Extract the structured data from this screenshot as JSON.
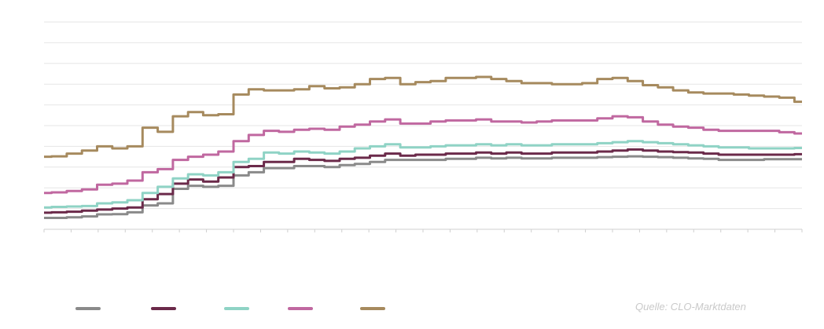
{
  "chart_data": {
    "type": "line",
    "title": "",
    "xlabel": "",
    "ylabel": "",
    "ylim": [
      0,
      10
    ],
    "grid": true,
    "y_gridlines": [
      0,
      1,
      2,
      3,
      4,
      5,
      6,
      7,
      8,
      9,
      10
    ],
    "x_ticks": 28,
    "legend_position": "bottom-left",
    "x": [
      0,
      2,
      4,
      6,
      8,
      10,
      12,
      14,
      16,
      18,
      20,
      22,
      24,
      26,
      28,
      30,
      32,
      34,
      36,
      38,
      40,
      42,
      44,
      46,
      48,
      50,
      52,
      54,
      56,
      58,
      60,
      62,
      64,
      66,
      68,
      70,
      72,
      74,
      76,
      78,
      80,
      82,
      84,
      86,
      88,
      90,
      92,
      94,
      96,
      98,
      100
    ],
    "series": [
      {
        "color": "#8a8a8a",
        "values": [
          0.55,
          0.55,
          0.58,
          0.62,
          0.72,
          0.73,
          0.82,
          1.15,
          1.25,
          1.95,
          2.1,
          2.05,
          2.1,
          2.6,
          2.75,
          2.95,
          2.95,
          3.05,
          3.05,
          3.0,
          3.1,
          3.15,
          3.25,
          3.35,
          3.35,
          3.35,
          3.35,
          3.4,
          3.4,
          3.45,
          3.42,
          3.45,
          3.42,
          3.42,
          3.45,
          3.45,
          3.45,
          3.48,
          3.5,
          3.52,
          3.5,
          3.48,
          3.45,
          3.42,
          3.4,
          3.35,
          3.35,
          3.35,
          3.38,
          3.38,
          3.38
        ]
      },
      {
        "color": "#6b2a4a",
        "values": [
          0.8,
          0.82,
          0.85,
          0.9,
          0.95,
          1.0,
          1.05,
          1.45,
          1.7,
          2.2,
          2.4,
          2.3,
          2.5,
          3.0,
          3.05,
          3.25,
          3.25,
          3.4,
          3.35,
          3.3,
          3.4,
          3.45,
          3.55,
          3.65,
          3.55,
          3.6,
          3.6,
          3.65,
          3.65,
          3.7,
          3.65,
          3.7,
          3.65,
          3.65,
          3.7,
          3.7,
          3.7,
          3.75,
          3.8,
          3.85,
          3.8,
          3.75,
          3.72,
          3.7,
          3.65,
          3.6,
          3.6,
          3.6,
          3.6,
          3.6,
          3.62
        ]
      },
      {
        "color": "#8fd3c5",
        "values": [
          1.05,
          1.08,
          1.1,
          1.12,
          1.25,
          1.3,
          1.4,
          1.75,
          2.05,
          2.45,
          2.65,
          2.6,
          2.75,
          3.25,
          3.4,
          3.7,
          3.65,
          3.75,
          3.7,
          3.65,
          3.75,
          3.9,
          4.0,
          4.1,
          3.95,
          3.95,
          4.0,
          4.05,
          4.05,
          4.1,
          4.05,
          4.1,
          4.05,
          4.05,
          4.1,
          4.1,
          4.1,
          4.15,
          4.2,
          4.25,
          4.2,
          4.15,
          4.1,
          4.05,
          4.0,
          3.95,
          3.95,
          3.9,
          3.9,
          3.9,
          3.92
        ]
      },
      {
        "color": "#c068a0",
        "values": [
          1.75,
          1.78,
          1.85,
          1.92,
          2.15,
          2.2,
          2.35,
          2.75,
          2.9,
          3.35,
          3.5,
          3.6,
          3.75,
          4.25,
          4.55,
          4.75,
          4.7,
          4.8,
          4.85,
          4.8,
          4.95,
          5.05,
          5.2,
          5.3,
          5.1,
          5.1,
          5.2,
          5.25,
          5.25,
          5.3,
          5.2,
          5.2,
          5.15,
          5.2,
          5.25,
          5.25,
          5.25,
          5.35,
          5.45,
          5.4,
          5.2,
          5.05,
          4.95,
          4.9,
          4.8,
          4.75,
          4.75,
          4.75,
          4.75,
          4.68,
          4.62
        ]
      },
      {
        "color": "#a68a5e",
        "values": [
          3.5,
          3.52,
          3.65,
          3.8,
          4.0,
          3.9,
          4.0,
          4.9,
          4.7,
          5.45,
          5.65,
          5.5,
          5.55,
          6.5,
          6.75,
          6.7,
          6.7,
          6.75,
          6.9,
          6.8,
          6.85,
          7.0,
          7.25,
          7.3,
          7.0,
          7.1,
          7.15,
          7.3,
          7.3,
          7.35,
          7.25,
          7.15,
          7.05,
          7.05,
          7.0,
          7.0,
          7.05,
          7.25,
          7.3,
          7.15,
          6.95,
          6.85,
          6.7,
          6.6,
          6.55,
          6.55,
          6.5,
          6.45,
          6.4,
          6.35,
          6.15
        ]
      }
    ]
  },
  "source": {
    "text": "Quelle: CLO-Marktdaten"
  }
}
